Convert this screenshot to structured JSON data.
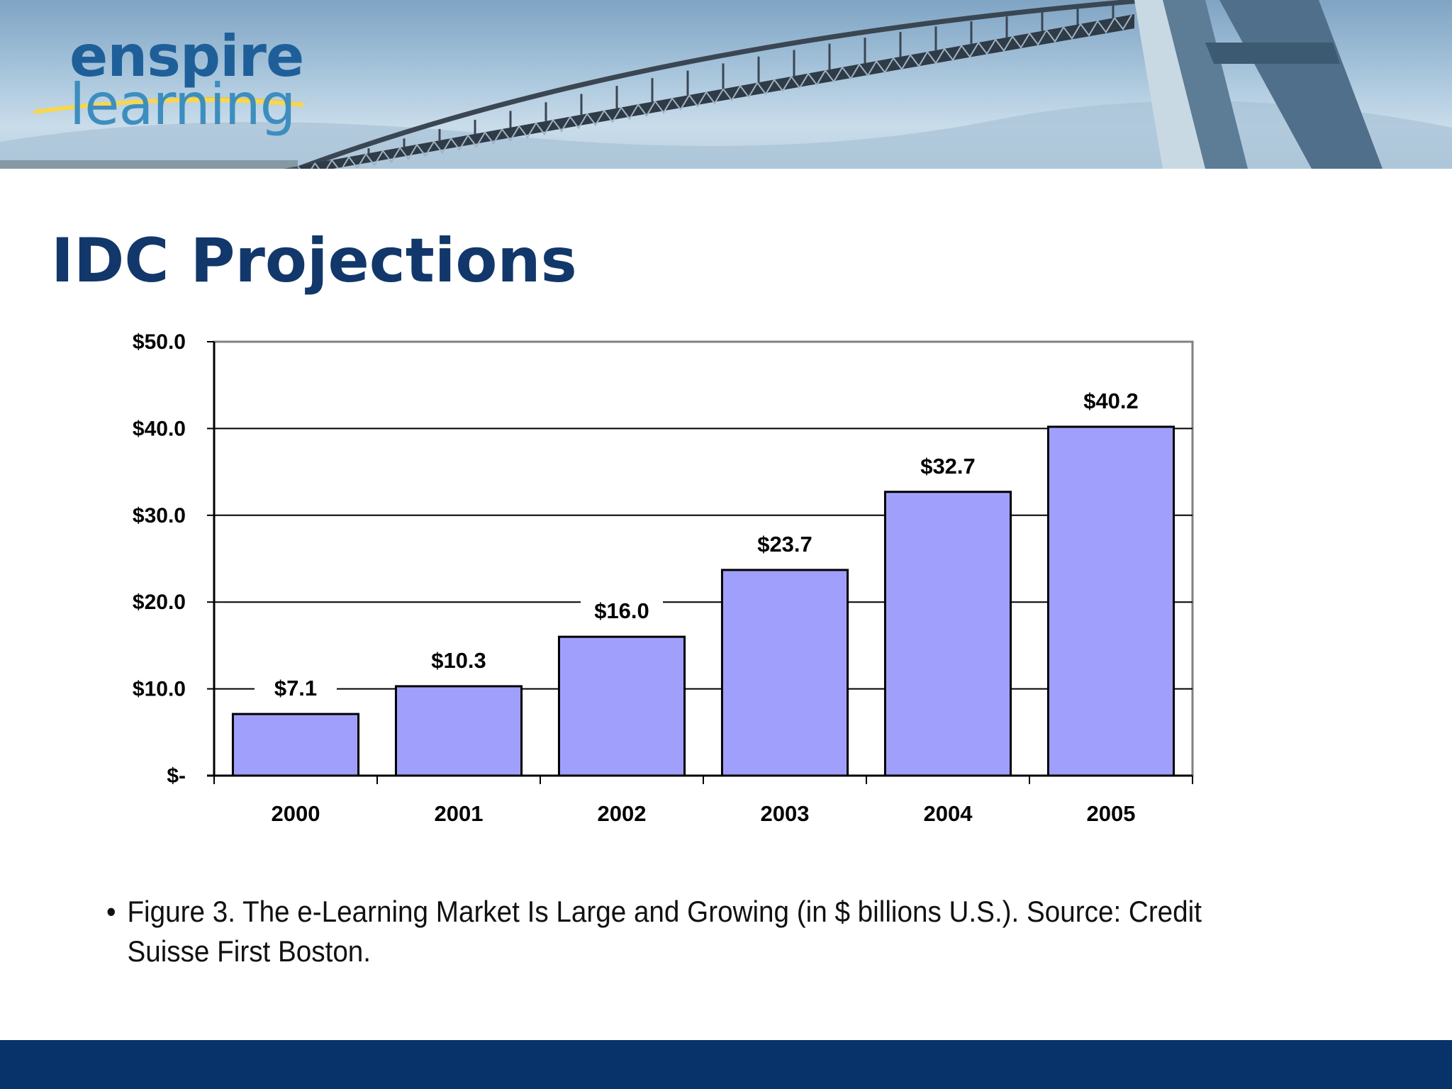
{
  "logo": {
    "line1": "enspire",
    "line2": "learning"
  },
  "slide": {
    "title": "IDC Projections",
    "caption": "Figure 3. The e-Learning Market Is Large and Growing (in $ billions U.S.).  Source: Credit Suisse First Boston."
  },
  "colors": {
    "title": "#12376a",
    "bar": "#a0a0fc",
    "footer": "#07326a"
  },
  "chart_data": {
    "type": "bar",
    "categories": [
      "2000",
      "2001",
      "2002",
      "2003",
      "2004",
      "2005"
    ],
    "values": [
      7.1,
      10.3,
      16.0,
      23.7,
      32.7,
      40.2
    ],
    "data_labels": [
      "$7.1",
      "$10.3",
      "$16.0",
      "$23.7",
      "$32.7",
      "$40.2"
    ],
    "y_ticks": [
      0,
      10,
      20,
      30,
      40,
      50
    ],
    "y_tick_labels": [
      "$-",
      "$10.0",
      "$20.0",
      "$30.0",
      "$40.0",
      "$50.0"
    ],
    "ylim": [
      0,
      50
    ],
    "grid": true,
    "legend": "none"
  }
}
